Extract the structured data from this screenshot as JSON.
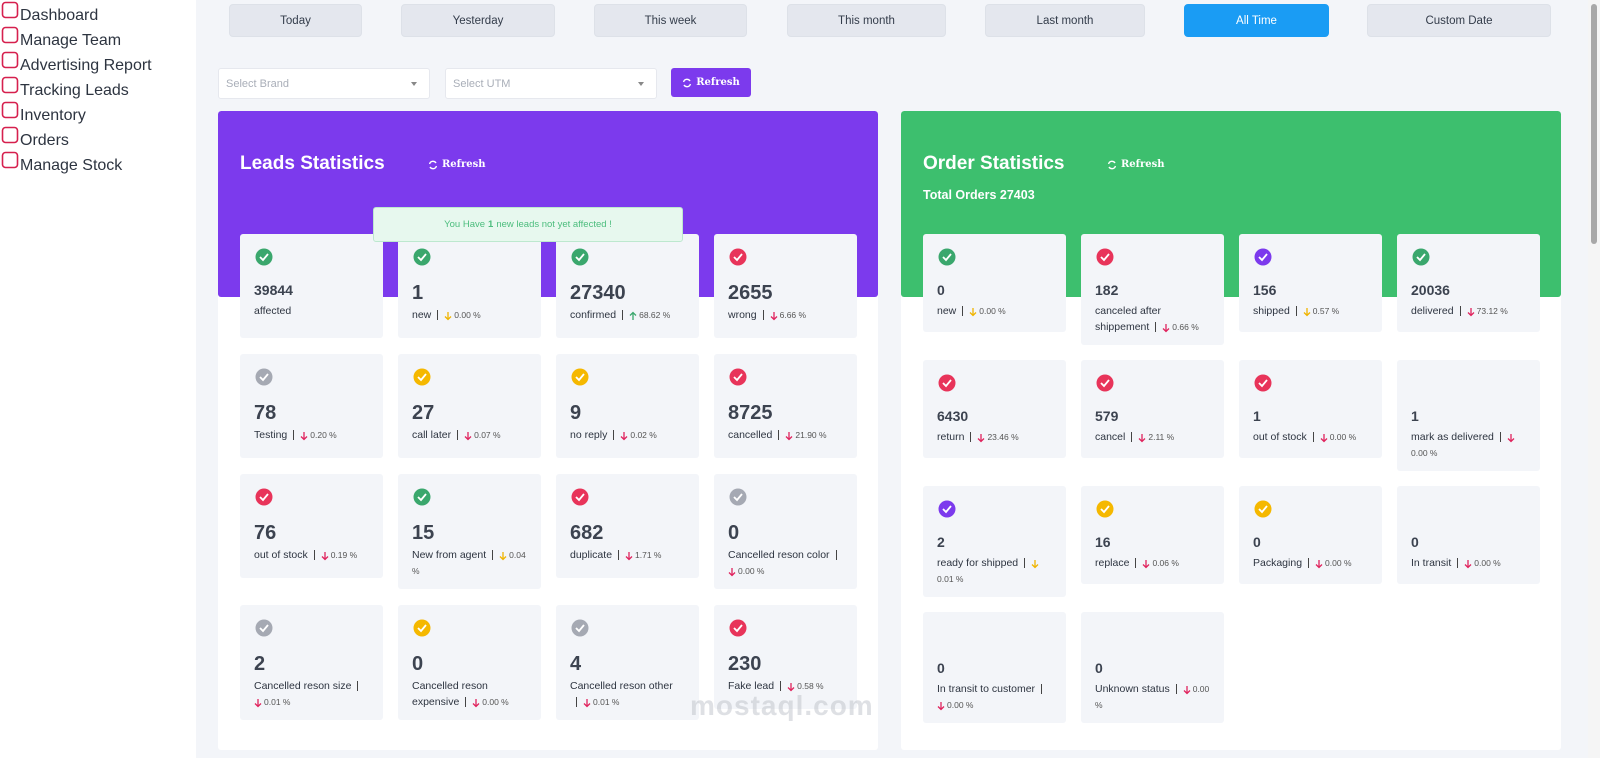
{
  "sidebar": {
    "items": [
      "Dashboard",
      "Manage Team",
      "Advertising Report",
      "Tracking Leads",
      "Inventory",
      "Orders",
      "Manage Stock"
    ],
    "icon_color": "#d6204e"
  },
  "date_filters": {
    "buttons": [
      "Today",
      "Yesterday",
      "This week",
      "This month",
      "Last month",
      "All Time",
      "Custom Date"
    ],
    "active": 5
  },
  "filters": {
    "brand": "Select Brand",
    "utm": "Select UTM",
    "refresh": "Refresh"
  },
  "leads": {
    "title": "Leads Statistics",
    "refresh": "Refresh",
    "color": "#7c3aed",
    "notice": {
      "before": "You Have",
      "count": "1",
      "after": "new leads not yet affected !"
    },
    "stats": [
      {
        "value": 39844,
        "label": "affected",
        "icon_color": "#3aa76d"
      },
      {
        "value": 1,
        "label": "new",
        "change": "0.00 %",
        "trend": "down",
        "trend_color": "#f0b400",
        "icon_color": "#3aa76d"
      },
      {
        "value": 27340,
        "label": "confirmed",
        "change": "68.62 %",
        "trend": "up",
        "trend_color": "#3aa76d",
        "icon_color": "#3aa76d"
      },
      {
        "value": 2655,
        "label": "wrong",
        "change": "6.66 %",
        "trend": "down",
        "trend_color": "#e0245e",
        "icon_color": "#e8345a"
      },
      {
        "value": 78,
        "label": "Testing",
        "change": "0.20 %",
        "trend": "down",
        "trend_color": "#e0245e",
        "icon_color": "#a5a9b3"
      },
      {
        "value": 27,
        "label": "call later",
        "change": "0.07 %",
        "trend": "down",
        "trend_color": "#e0245e",
        "icon_color": "#f5b800"
      },
      {
        "value": 9,
        "label": "no reply",
        "change": "0.02 %",
        "trend": "down",
        "trend_color": "#e0245e",
        "icon_color": "#f5b800"
      },
      {
        "value": 8725,
        "label": "cancelled",
        "change": "21.90 %",
        "trend": "down",
        "trend_color": "#e0245e",
        "icon_color": "#e8345a"
      },
      {
        "value": 76,
        "label": "out of stock",
        "change": "0.19 %",
        "trend": "down",
        "trend_color": "#e0245e",
        "icon_color": "#e8345a"
      },
      {
        "value": 15,
        "label": "New from agent",
        "change": "0.04 %",
        "trend": "down",
        "trend_color": "#f0b400",
        "icon_color": "#3aa76d"
      },
      {
        "value": 682,
        "label": "duplicate",
        "change": "1.71 %",
        "trend": "down",
        "trend_color": "#e0245e",
        "icon_color": "#e8345a"
      },
      {
        "value": 0,
        "label": "Cancelled reson color",
        "change": "0.00 %",
        "trend": "down",
        "trend_color": "#e0245e",
        "icon_color": "#a5a9b3"
      },
      {
        "value": 2,
        "label": "Cancelled reson size",
        "change": "0.01 %",
        "trend": "down",
        "trend_color": "#e0245e",
        "icon_color": "#a5a9b3"
      },
      {
        "value": 0,
        "label": "Cancelled reson expensive",
        "change": "0.00 %",
        "trend": "down",
        "trend_color": "#e0245e",
        "icon_color": "#f5b800"
      },
      {
        "value": 4,
        "label": "Cancelled reson other",
        "change": "0.01 %",
        "trend": "down",
        "trend_color": "#e0245e",
        "icon_color": "#a5a9b3"
      },
      {
        "value": 230,
        "label": "Fake lead",
        "change": "0.58 %",
        "trend": "down",
        "trend_color": "#e0245e",
        "icon_color": "#e8345a"
      }
    ]
  },
  "orders": {
    "title": "Order Statistics",
    "refresh": "Refresh",
    "color": "#3dbf6e",
    "total_label": "Total Orders",
    "total": 27403,
    "stats": [
      {
        "value": 0,
        "label": "new",
        "change": "0.00 %",
        "trend": "down",
        "trend_color": "#f0b400",
        "icon_color": "#3aa76d"
      },
      {
        "value": 182,
        "label": "canceled after shippement",
        "change": "0.66 %",
        "trend": "down",
        "trend_color": "#e0245e",
        "icon_color": "#e8345a"
      },
      {
        "value": 156,
        "label": "shipped",
        "change": "0.57 %",
        "trend": "down",
        "trend_color": "#f0b400",
        "icon_color": "#7c3aed"
      },
      {
        "value": 20036,
        "label": "delivered",
        "change": "73.12 %",
        "trend": "down",
        "trend_color": "#e0245e",
        "icon_color": "#3aa76d"
      },
      {
        "value": 6430,
        "label": "return",
        "change": "23.46 %",
        "trend": "down",
        "trend_color": "#e0245e",
        "icon_color": "#e8345a"
      },
      {
        "value": 579,
        "label": "cancel",
        "change": "2.11 %",
        "trend": "down",
        "trend_color": "#e0245e",
        "icon_color": "#e8345a"
      },
      {
        "value": 1,
        "label": "out of stock",
        "change": "0.00 %",
        "trend": "down",
        "trend_color": "#e0245e",
        "icon_color": "#e8345a"
      },
      {
        "value": 1,
        "label": "mark as delivered",
        "change": "0.00 %",
        "trend": "down",
        "trend_color": "#e0245e"
      },
      {
        "value": 2,
        "label": "ready for shipped",
        "change": "0.01 %",
        "trend": "down",
        "trend_color": "#f0b400",
        "icon_color": "#7c3aed"
      },
      {
        "value": 16,
        "label": "replace",
        "change": "0.06 %",
        "trend": "down",
        "trend_color": "#e0245e",
        "icon_color": "#f5b800"
      },
      {
        "value": 0,
        "label": "Packaging",
        "change": "0.00 %",
        "trend": "down",
        "trend_color": "#e0245e",
        "icon_color": "#f5b800"
      },
      {
        "value": 0,
        "label": "In transit",
        "change": "0.00 %",
        "trend": "down",
        "trend_color": "#e0245e"
      },
      {
        "value": 0,
        "label": "In transit to customer",
        "change": "0.00 %",
        "trend": "down",
        "trend_color": "#e0245e"
      },
      {
        "value": 0,
        "label": "Unknown status",
        "change": "0.00 %",
        "trend": "down",
        "trend_color": "#e0245e"
      }
    ]
  },
  "watermark": "mostaql.com"
}
